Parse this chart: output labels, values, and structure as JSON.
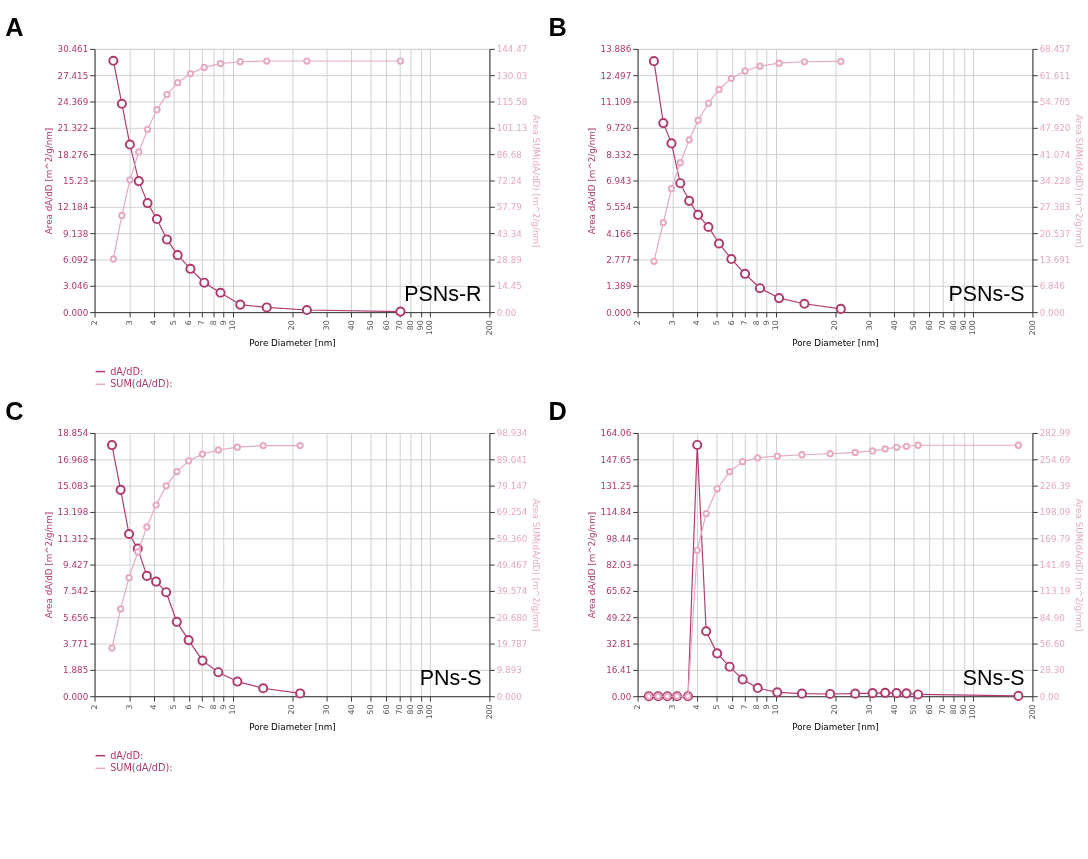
{
  "chart_data": [
    {
      "type": "line",
      "title": "A",
      "xlabel": "Pore Diameter [nm]",
      "ylabel": "Area dA/dD [m^2/g/nm]",
      "y2label": "Area SUM(dA/dD) [m^2/g/nm]",
      "annotations": [
        "PSNs-R"
      ],
      "log": "x",
      "grid": true,
      "legend": "bottom",
      "marker": "circle",
      "x": [
        2.49,
        2.75,
        3.02,
        3.35,
        3.71,
        4.14,
        4.65,
        5.27,
        6.12,
        7.19,
        8.69,
        10.94,
        14.9,
        23.8,
        70.9
      ],
      "xlim": [
        2,
        200
      ],
      "xticks": [
        2,
        3,
        4,
        5,
        6,
        7,
        8,
        9,
        10,
        20,
        30,
        40,
        50,
        60,
        70,
        80,
        90,
        100,
        200
      ],
      "ylim": [
        0,
        30.461
      ],
      "yticks": [
        {
          "value": 0,
          "label": "0.000"
        },
        3.046,
        6.092,
        9.138,
        12.184,
        15.23,
        18.276,
        21.322,
        24.369,
        27.415,
        30.461
      ],
      "y2lim": [
        0,
        144.47
      ],
      "y2ticks": [
        {
          "value": 0,
          "label": "0.00"
        },
        14.45,
        28.89,
        43.34,
        57.79,
        72.24,
        86.68,
        101.13,
        115.58,
        130.03,
        144.47
      ],
      "series": [
        {
          "name": "dA/dD:",
          "color": "#b03a6e",
          "values": [
            29.09,
            24.11,
            19.39,
            15.16,
            12.62,
            10.77,
            8.41,
            6.59,
            5.01,
            3.4,
            2.24,
            0.87,
            0.54,
            0.24,
            0.06
          ]
        },
        {
          "name": "SUM(dA/dD):",
          "color": "#e6a9c2",
          "axis": "y2",
          "values": [
            29.15,
            53.06,
            72.59,
            87.87,
            100.3,
            111.1,
            119.4,
            125.9,
            130.9,
            134.3,
            136.4,
            137.4,
            137.8,
            137.8,
            137.8
          ]
        }
      ]
    },
    {
      "type": "line",
      "title": "B",
      "xlabel": "Pore Diameter [nm]",
      "ylabel": "Area dA/dD [m^2/g/nm]",
      "y2label": "Area SUM(dA/dD) [m^2/g/nm]",
      "annotations": [
        "PSNs-S"
      ],
      "log": "x",
      "grid": true,
      "legend": "bottom",
      "marker": "circle",
      "x": [
        2.42,
        2.7,
        2.97,
        3.29,
        3.65,
        4.05,
        4.57,
        5.17,
        5.97,
        7.0,
        8.34,
        10.42,
        14.0,
        21.4
      ],
      "xlim": [
        2,
        200
      ],
      "xticks": [
        2,
        3,
        4,
        5,
        6,
        7,
        8,
        9,
        10,
        20,
        30,
        40,
        50,
        60,
        70,
        80,
        90,
        100,
        200
      ],
      "ylim": [
        0,
        13.886
      ],
      "yticks": [
        {
          "value": 0,
          "label": "0.000"
        },
        1.389,
        2.777,
        4.166,
        5.554,
        6.943,
        8.332,
        {
          "value": 9.72,
          "label": "9.720"
        },
        11.109,
        12.497,
        13.886
      ],
      "y2lim": [
        0,
        68.457
      ],
      "y2ticks": [
        {
          "value": 0,
          "label": "0.000"
        },
        6.846,
        13.691,
        20.537,
        27.383,
        34.228,
        41.074,
        {
          "value": 47.92,
          "label": "47.920"
        },
        54.765,
        61.611,
        68.457
      ],
      "series": [
        {
          "name": "dA/dD:",
          "color": "#b03a6e",
          "values": [
            13.24,
            9.97,
            8.9,
            6.8,
            5.87,
            5.13,
            4.49,
            3.62,
            2.8,
            2.02,
            1.26,
            0.74,
            0.44,
            0.17
          ]
        },
        {
          "name": "SUM(dA/dD):",
          "color": "#e6a9c2",
          "axis": "y2",
          "values": [
            13.22,
            23.26,
            32.11,
            38.85,
            44.8,
            49.9,
            54.3,
            57.9,
            60.8,
            62.7,
            63.96,
            64.75,
            65.1,
            65.2
          ]
        }
      ]
    },
    {
      "type": "line",
      "title": "C",
      "xlabel": "Pore Diameter [nm]",
      "ylabel": "Area dA/dD [m^2/g/nm]",
      "y2label": "Area SUM(dA/dD) [m^2/g/nm]",
      "annotations": [
        "PNs-S"
      ],
      "log": "x",
      "grid": true,
      "legend": "bottom",
      "marker": "circle",
      "x": [
        2.45,
        2.71,
        2.99,
        3.31,
        3.68,
        4.1,
        4.61,
        5.22,
        5.99,
        7.04,
        8.47,
        10.58,
        14.3,
        22.0
      ],
      "xlim": [
        2,
        200
      ],
      "xticks": [
        2,
        3,
        4,
        5,
        6,
        7,
        8,
        9,
        10,
        20,
        30,
        40,
        50,
        60,
        70,
        80,
        90,
        100,
        200
      ],
      "ylim": [
        0,
        18.854
      ],
      "yticks": [
        {
          "value": 0,
          "label": "0.000"
        },
        1.885,
        3.771,
        5.656,
        7.542,
        9.427,
        11.312,
        13.198,
        15.083,
        16.968,
        18.854
      ],
      "y2lim": [
        0,
        98.934
      ],
      "y2ticks": [
        {
          "value": 0,
          "label": "0.000"
        },
        9.893,
        19.787,
        {
          "value": 29.68,
          "label": "29.680"
        },
        39.574,
        49.467,
        {
          "value": 59.36,
          "label": "59.360"
        },
        69.254,
        79.147,
        89.041,
        98.934
      ],
      "series": [
        {
          "name": "dA/dD:",
          "color": "#b03a6e",
          "values": [
            17.99,
            14.78,
            11.62,
            10.57,
            8.62,
            8.21,
            7.45,
            5.33,
            4.02,
            2.55,
            1.72,
            1.05,
            0.57,
            0.2
          ]
        },
        {
          "name": "SUM(dA/dD):",
          "color": "#e6a9c2",
          "axis": "y2",
          "values": [
            18.1,
            32.82,
            44.53,
            54.21,
            63.6,
            71.83,
            79.09,
            84.41,
            88.48,
            91.0,
            92.55,
            93.61,
            94.19,
            94.19
          ]
        }
      ]
    },
    {
      "type": "line",
      "title": "D",
      "xlabel": "Pore Diameter [nm]",
      "ylabel": "Area dA/dD [m^2/g/nm]",
      "y2label": "Area SUM(dA/dD) [m^2/g/nm]",
      "annotations": [
        "SNs-S"
      ],
      "log": "x",
      "grid": true,
      "legend": "bottom",
      "marker": "circle",
      "x": [
        2.28,
        2.54,
        2.83,
        3.17,
        3.6,
        4.01,
        4.45,
        5.06,
        5.85,
        6.81,
        8.12,
        10.2,
        13.6,
        18.9,
        25.3,
        31.0,
        35.9,
        41.0,
        46.0,
        52.7,
        169.8
      ],
      "xlim": [
        2,
        200
      ],
      "xticks": [
        2,
        3,
        4,
        5,
        6,
        7,
        8,
        9,
        10,
        20,
        30,
        40,
        50,
        60,
        70,
        80,
        90,
        100,
        200
      ],
      "ylim": [
        0,
        164.06
      ],
      "yticks": [
        {
          "value": 0,
          "label": "0.00"
        },
        16.41,
        32.81,
        49.22,
        65.62,
        82.03,
        98.44,
        114.84,
        131.25,
        147.65,
        164.06
      ],
      "y2lim": [
        0,
        282.99
      ],
      "y2ticks": [
        {
          "value": 0,
          "label": "0.00"
        },
        {
          "value": 28.3,
          "label": "28.30"
        },
        {
          "value": 56.6,
          "label": "56.60"
        },
        {
          "value": 84.9,
          "label": "84.90"
        },
        113.19,
        141.49,
        169.79,
        198.09,
        226.39,
        254.69,
        282.99
      ],
      "series": [
        {
          "name": "dA/dD:",
          "color": "#b03a6e",
          "values": [
            0,
            0,
            0,
            0,
            0,
            156.6,
            40.5,
            26.7,
            18.4,
            10.5,
            5.1,
            2.4,
            1.6,
            1.4,
            1.6,
            1.9,
            2.1,
            1.9,
            1.8,
            1.1,
            0.2
          ]
        },
        {
          "name": "SUM(dA/dD):",
          "color": "#e6a9c2",
          "axis": "y2",
          "values": [
            0,
            0,
            0,
            0,
            0,
            156.9,
            196.3,
            223.0,
            241.4,
            252.2,
            256.3,
            258.2,
            259.6,
            260.7,
            262.1,
            263.7,
            265.9,
            267.6,
            268.7,
            269.8,
            269.8
          ]
        }
      ]
    }
  ]
}
